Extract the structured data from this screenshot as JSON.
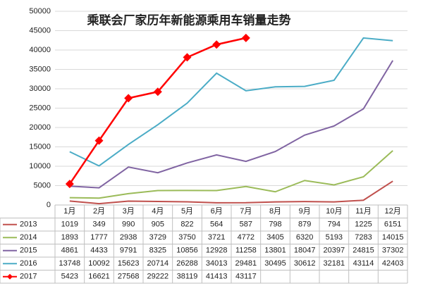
{
  "chart_data": {
    "type": "line",
    "title": "乘联会厂家历年新能源乘用车销量走势",
    "categories": [
      "1月",
      "2月",
      "3月",
      "4月",
      "5月",
      "6月",
      "7月",
      "8月",
      "9月",
      "10月",
      "11月",
      "12月"
    ],
    "series": [
      {
        "name": "2013",
        "color": "#c0504d",
        "values": [
          1019,
          349,
          990,
          905,
          822,
          564,
          587,
          798,
          879,
          794,
          1225,
          6151
        ]
      },
      {
        "name": "2014",
        "color": "#9bbb59",
        "values": [
          1893,
          1777,
          2938,
          3729,
          3750,
          3721,
          4772,
          3405,
          6320,
          5193,
          7283,
          14015
        ]
      },
      {
        "name": "2015",
        "color": "#8064a2",
        "values": [
          4861,
          4433,
          9791,
          8325,
          10856,
          12928,
          11258,
          13801,
          18047,
          20397,
          24815,
          37302
        ]
      },
      {
        "name": "2016",
        "color": "#4bacc6",
        "values": [
          13748,
          10092,
          15623,
          20714,
          26288,
          34013,
          29481,
          30495,
          30612,
          32181,
          43114,
          42403
        ]
      },
      {
        "name": "2017",
        "color": "#ff0000",
        "marker": "diamond",
        "values": [
          5423,
          16621,
          27568,
          29222,
          38119,
          41413,
          43117,
          null,
          null,
          null,
          null,
          null
        ]
      }
    ],
    "ylim": [
      0,
      50000
    ],
    "yticks": [
      0,
      5000,
      10000,
      15000,
      20000,
      25000,
      30000,
      35000,
      40000,
      45000,
      50000
    ],
    "grid": true
  }
}
